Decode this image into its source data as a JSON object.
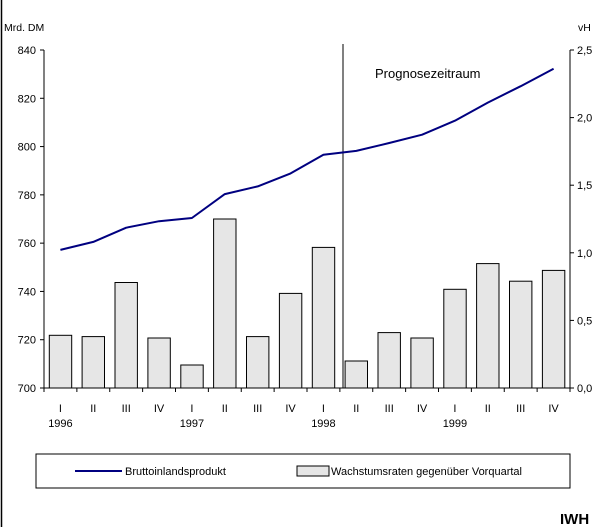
{
  "chart_data": {
    "type": "bar",
    "y_left_label": "Mrd. DM",
    "y_right_label": "vH",
    "annotation": "Prognosezeitraum",
    "quarters": [
      "I",
      "II",
      "III",
      "IV",
      "I",
      "II",
      "III",
      "IV",
      "I",
      "II",
      "III",
      "IV",
      "I",
      "II",
      "III",
      "IV"
    ],
    "years": [
      "1996",
      "1997",
      "1998",
      "1999"
    ],
    "y_left": {
      "min": 700,
      "max": 840,
      "ticks": [
        700,
        720,
        740,
        760,
        780,
        800,
        820,
        840
      ],
      "tick_labels": [
        "700",
        "720",
        "740",
        "760",
        "780",
        "800",
        "820",
        "840"
      ]
    },
    "y_right": {
      "min": 0.0,
      "max": 2.5,
      "ticks": [
        0,
        0.5,
        1,
        1.5,
        2,
        2.5
      ],
      "tick_labels": [
        "0,0",
        "0,5",
        "1,0",
        "1,5",
        "2,0",
        "2,5"
      ]
    },
    "series": [
      {
        "name": "Bruttoinlandsprodukt",
        "type": "line",
        "axis": "left",
        "color": "#000080",
        "values": [
          757.2,
          760.5,
          766.4,
          769.1,
          770.4,
          780.3,
          783.5,
          788.9,
          796.6,
          798.2,
          801.5,
          804.9,
          810.7,
          818.2,
          825.0,
          832.2
        ]
      },
      {
        "name": "Wachstumsraten gegenüber Vorquartal",
        "type": "bar",
        "axis": "right",
        "color": "#e6e6e6",
        "values": [
          0.39,
          0.38,
          0.78,
          0.37,
          0.17,
          1.25,
          0.38,
          0.7,
          1.04,
          0.2,
          0.41,
          0.37,
          0.73,
          0.92,
          0.79,
          0.87
        ]
      }
    ]
  },
  "brand": "IWH"
}
